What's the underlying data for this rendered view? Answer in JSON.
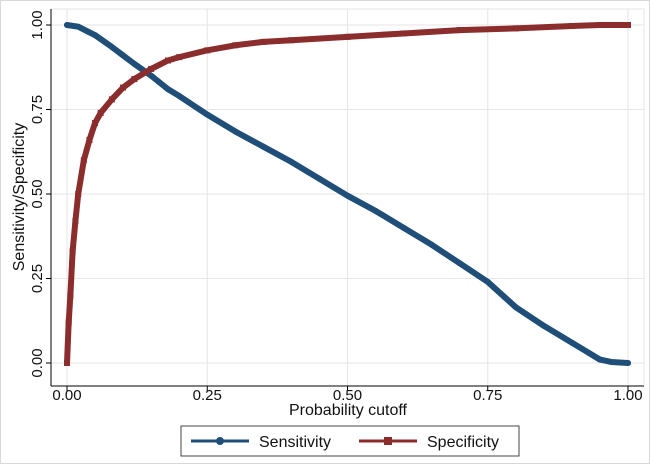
{
  "chart_data": {
    "type": "line",
    "title": "",
    "xlabel": "Probability cutoff",
    "ylabel": "Sensitivity/Specificity",
    "xlim": [
      0,
      1
    ],
    "ylim": [
      0,
      1
    ],
    "x_ticks": [
      "0.00",
      "0.25",
      "0.50",
      "0.75",
      "1.00"
    ],
    "y_ticks": [
      "0.00",
      "0.25",
      "0.50",
      "0.75",
      "1.00"
    ],
    "grid": true,
    "legend_position": "bottom",
    "series": [
      {
        "name": "Sensitivity",
        "color": "#1f4e79",
        "marker": "circle",
        "x": [
          0.0,
          0.02,
          0.05,
          0.08,
          0.1,
          0.12,
          0.15,
          0.18,
          0.2,
          0.25,
          0.3,
          0.35,
          0.4,
          0.45,
          0.5,
          0.55,
          0.6,
          0.65,
          0.7,
          0.75,
          0.78,
          0.8,
          0.85,
          0.9,
          0.93,
          0.95,
          0.97,
          1.0
        ],
        "y": [
          1.0,
          0.995,
          0.97,
          0.935,
          0.91,
          0.885,
          0.85,
          0.81,
          0.79,
          0.735,
          0.685,
          0.64,
          0.595,
          0.545,
          0.495,
          0.45,
          0.4,
          0.35,
          0.295,
          0.24,
          0.195,
          0.165,
          0.11,
          0.06,
          0.03,
          0.01,
          0.003,
          0.0
        ]
      },
      {
        "name": "Specificity",
        "color": "#8c2d2d",
        "marker": "square",
        "x": [
          0.0,
          0.003,
          0.006,
          0.01,
          0.015,
          0.02,
          0.03,
          0.04,
          0.05,
          0.06,
          0.08,
          0.1,
          0.12,
          0.15,
          0.18,
          0.2,
          0.25,
          0.3,
          0.35,
          0.4,
          0.5,
          0.6,
          0.7,
          0.8,
          0.9,
          0.95,
          1.0
        ],
        "y": [
          0.0,
          0.12,
          0.2,
          0.33,
          0.42,
          0.5,
          0.6,
          0.66,
          0.71,
          0.74,
          0.78,
          0.815,
          0.84,
          0.87,
          0.895,
          0.905,
          0.925,
          0.94,
          0.95,
          0.955,
          0.965,
          0.975,
          0.985,
          0.99,
          0.997,
          1.0,
          1.0
        ]
      }
    ]
  }
}
